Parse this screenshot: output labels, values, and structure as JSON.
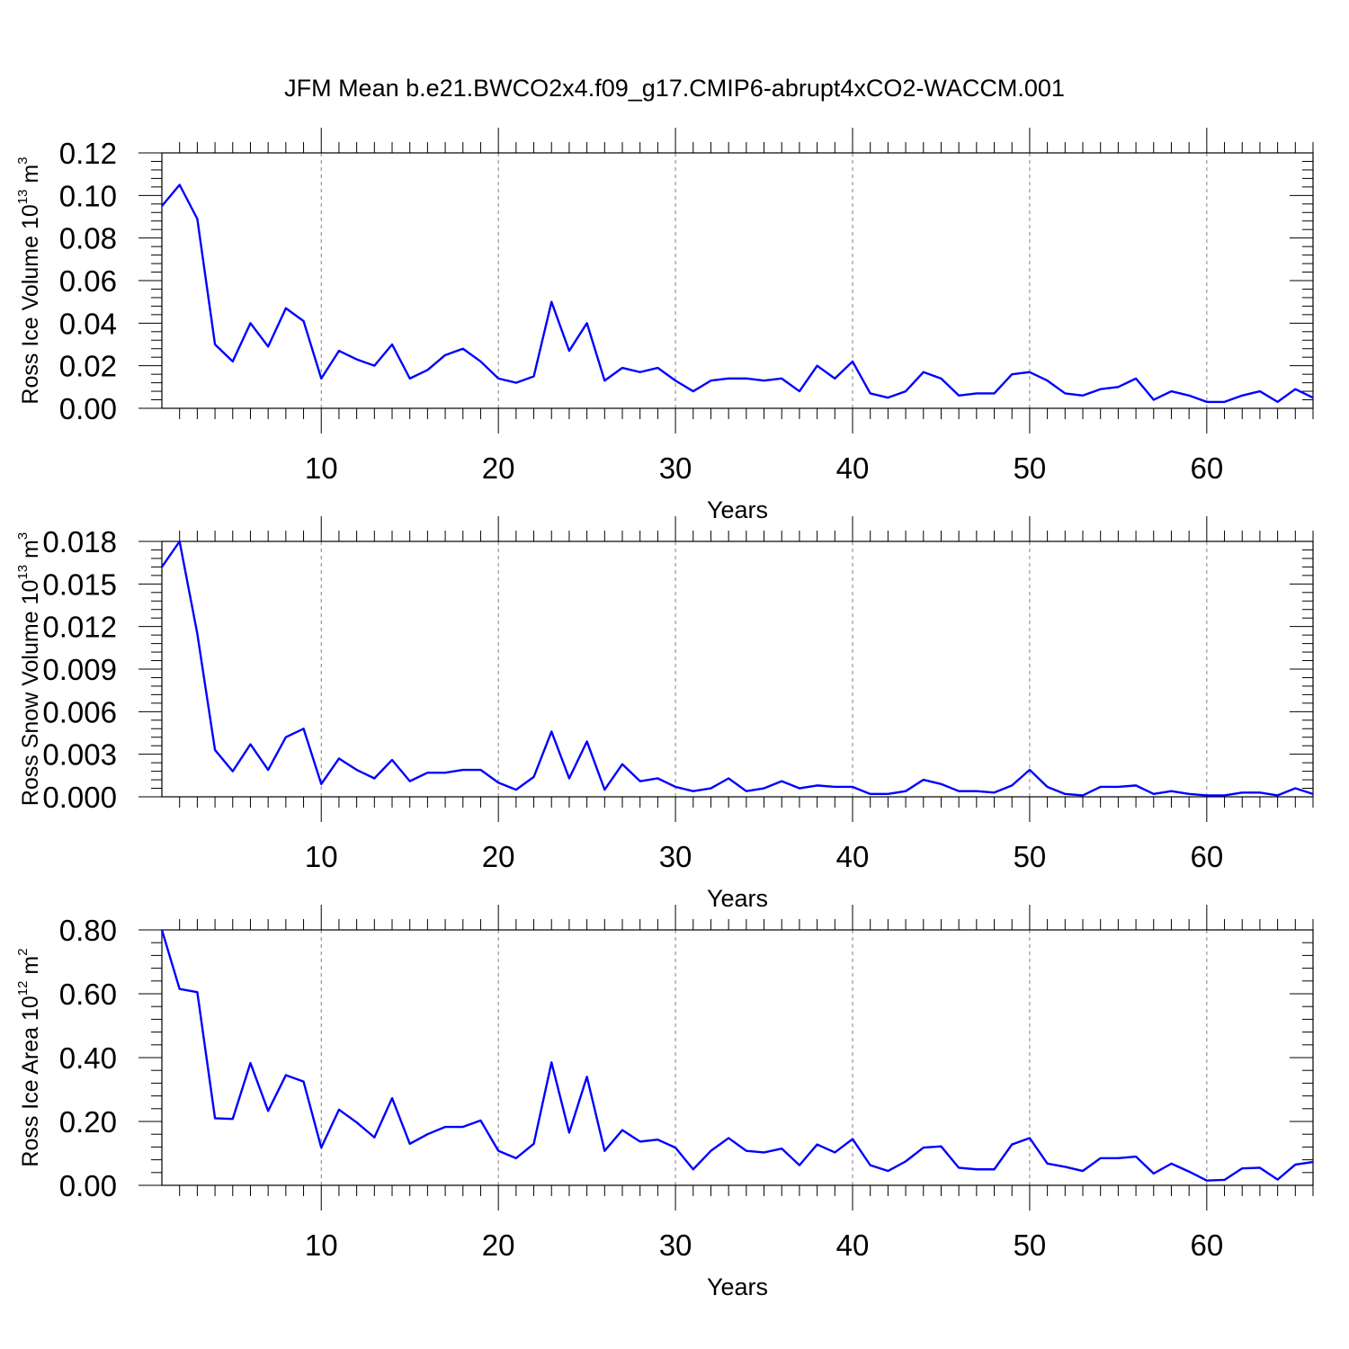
{
  "title": "JFM Mean b.e21.BWCO2x4.f09_g17.CMIP6-abrupt4xCO2-WACCM.001",
  "colors": {
    "line": "#0000ff",
    "axis": "#000000",
    "grid": "#808080"
  },
  "chart_data": [
    {
      "type": "line",
      "ylabel": {
        "text": "Ross Ice Volume 10",
        "sup": "13",
        "unit": " m",
        "unit_sup": "3"
      },
      "xlabel": "Years",
      "xlim": [
        1,
        66
      ],
      "ylim": [
        0,
        0.12
      ],
      "x_ticks": [
        10,
        20,
        30,
        40,
        50,
        60
      ],
      "x_tick_labels": [
        "10",
        "20",
        "30",
        "40",
        "50",
        "60"
      ],
      "y_ticks": [
        0,
        0.02,
        0.04,
        0.06,
        0.08,
        0.1,
        0.12
      ],
      "y_tick_labels": [
        "0.00",
        "0.02",
        "0.04",
        "0.06",
        "0.08",
        "0.10",
        "0.12"
      ],
      "grid": "vertical dashed at x ticks",
      "series": [
        {
          "name": "Ross Ice Volume",
          "values": [
            0.095,
            0.105,
            0.089,
            0.03,
            0.022,
            0.04,
            0.029,
            0.047,
            0.041,
            0.014,
            0.027,
            0.023,
            0.02,
            0.03,
            0.014,
            0.018,
            0.025,
            0.028,
            0.022,
            0.014,
            0.012,
            0.015,
            0.05,
            0.027,
            0.04,
            0.013,
            0.019,
            0.017,
            0.019,
            0.013,
            0.008,
            0.013,
            0.014,
            0.014,
            0.013,
            0.014,
            0.008,
            0.02,
            0.014,
            0.022,
            0.007,
            0.005,
            0.008,
            0.017,
            0.014,
            0.006,
            0.007,
            0.007,
            0.016,
            0.017,
            0.013,
            0.007,
            0.006,
            0.009,
            0.01,
            0.014,
            0.004,
            0.008,
            0.006,
            0.003,
            0.003,
            0.006,
            0.008,
            0.003,
            0.009,
            0.005
          ]
        }
      ]
    },
    {
      "type": "line",
      "ylabel": {
        "text": "Ross Snow Volume 10",
        "sup": "13",
        "unit": " m",
        "unit_sup": "3"
      },
      "xlabel": "Years",
      "xlim": [
        1,
        66
      ],
      "ylim": [
        0,
        0.018
      ],
      "x_ticks": [
        10,
        20,
        30,
        40,
        50,
        60
      ],
      "x_tick_labels": [
        "10",
        "20",
        "30",
        "40",
        "50",
        "60"
      ],
      "y_ticks": [
        0,
        0.003,
        0.006,
        0.009,
        0.012,
        0.015,
        0.018
      ],
      "y_tick_labels": [
        "0.000",
        "0.003",
        "0.006",
        "0.009",
        "0.012",
        "0.015",
        "0.018"
      ],
      "grid": "vertical dashed at x ticks",
      "series": [
        {
          "name": "Ross Snow Volume",
          "values": [
            0.0162,
            0.018,
            0.0115,
            0.0033,
            0.0018,
            0.0037,
            0.0019,
            0.0042,
            0.0048,
            0.0009,
            0.0027,
            0.0019,
            0.0013,
            0.0026,
            0.0011,
            0.0017,
            0.0017,
            0.0019,
            0.0019,
            0.001,
            0.0005,
            0.0014,
            0.0046,
            0.0013,
            0.0039,
            0.0005,
            0.0023,
            0.0011,
            0.0013,
            0.0007,
            0.0004,
            0.0006,
            0.0013,
            0.0004,
            0.0006,
            0.0011,
            0.0006,
            0.0008,
            0.0007,
            0.0007,
            0.0002,
            0.0002,
            0.0004,
            0.0012,
            0.0009,
            0.0004,
            0.0004,
            0.0003,
            0.0008,
            0.0019,
            0.0007,
            0.0002,
            0.0001,
            0.0007,
            0.0007,
            0.0008,
            0.0002,
            0.0004,
            0.0002,
            0.0001,
            0.0001,
            0.0003,
            0.0003,
            0.0001,
            0.0006,
            0.0002
          ]
        }
      ]
    },
    {
      "type": "line",
      "ylabel": {
        "text": "Ross Ice Area 10",
        "sup": "12",
        "unit": " m",
        "unit_sup": "2"
      },
      "xlabel": "Years",
      "xlim": [
        1,
        66
      ],
      "ylim": [
        0,
        0.8
      ],
      "x_ticks": [
        10,
        20,
        30,
        40,
        50,
        60
      ],
      "x_tick_labels": [
        "10",
        "20",
        "30",
        "40",
        "50",
        "60"
      ],
      "y_ticks": [
        0,
        0.2,
        0.4,
        0.6,
        0.8
      ],
      "y_tick_labels": [
        "0.00",
        "0.20",
        "0.40",
        "0.60",
        "0.80"
      ],
      "grid": "vertical dashed at x ticks",
      "series": [
        {
          "name": "Ross Ice Area",
          "values": [
            0.8,
            0.615,
            0.605,
            0.21,
            0.208,
            0.383,
            0.233,
            0.345,
            0.325,
            0.118,
            0.237,
            0.197,
            0.15,
            0.273,
            0.13,
            0.16,
            0.183,
            0.183,
            0.203,
            0.108,
            0.085,
            0.13,
            0.385,
            0.165,
            0.34,
            0.108,
            0.173,
            0.137,
            0.143,
            0.118,
            0.05,
            0.108,
            0.148,
            0.108,
            0.103,
            0.115,
            0.063,
            0.128,
            0.103,
            0.145,
            0.063,
            0.045,
            0.075,
            0.118,
            0.122,
            0.055,
            0.05,
            0.05,
            0.128,
            0.148,
            0.068,
            0.058,
            0.045,
            0.085,
            0.085,
            0.09,
            0.037,
            0.068,
            0.043,
            0.015,
            0.017,
            0.053,
            0.055,
            0.018,
            0.065,
            0.073
          ]
        }
      ]
    }
  ]
}
